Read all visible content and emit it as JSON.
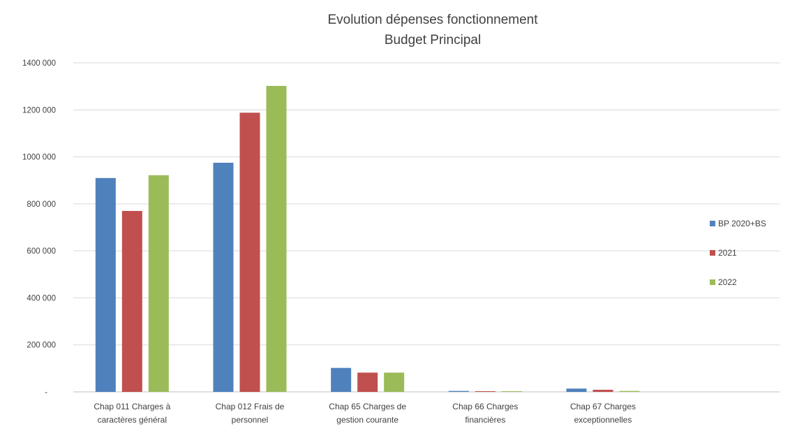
{
  "chart_data": {
    "type": "bar",
    "title": [
      "Evolution dépenses fonctionnement",
      "Budget Principal"
    ],
    "xlabel": "",
    "ylabel": "",
    "ylim": [
      0,
      1400000
    ],
    "yticks": [
      {
        "value": 0,
        "label": "-"
      },
      {
        "value": 200000,
        "label": "200 000"
      },
      {
        "value": 400000,
        "label": "400 000"
      },
      {
        "value": 600000,
        "label": "600 000"
      },
      {
        "value": 800000,
        "label": "800 000"
      },
      {
        "value": 1000000,
        "label": "1000 000"
      },
      {
        "value": 1200000,
        "label": "1200 000"
      },
      {
        "value": 1400000,
        "label": "1400 000"
      }
    ],
    "grid": true,
    "legend_position": "right",
    "categories": [
      [
        "Chap 011 Charges à",
        "caractères général"
      ],
      [
        "Chap 012 Frais de",
        "personnel"
      ],
      [
        "Chap 65 Charges de",
        "gestion courante"
      ],
      [
        "Chap 66 Charges",
        "financières"
      ],
      [
        "Chap  67 Charges",
        "exceptionnelles"
      ],
      [
        ""
      ]
    ],
    "series": [
      {
        "name": "BP 2020+BS",
        "color": "#4F81BD",
        "values": [
          910000,
          975000,
          102000,
          4000,
          14000,
          0
        ]
      },
      {
        "name": "2021",
        "color": "#C0504D",
        "values": [
          770000,
          1188000,
          82000,
          3000,
          9000,
          0
        ]
      },
      {
        "name": "2022",
        "color": "#9BBB59",
        "values": [
          922000,
          1302000,
          82000,
          3000,
          4000,
          0
        ]
      }
    ]
  }
}
